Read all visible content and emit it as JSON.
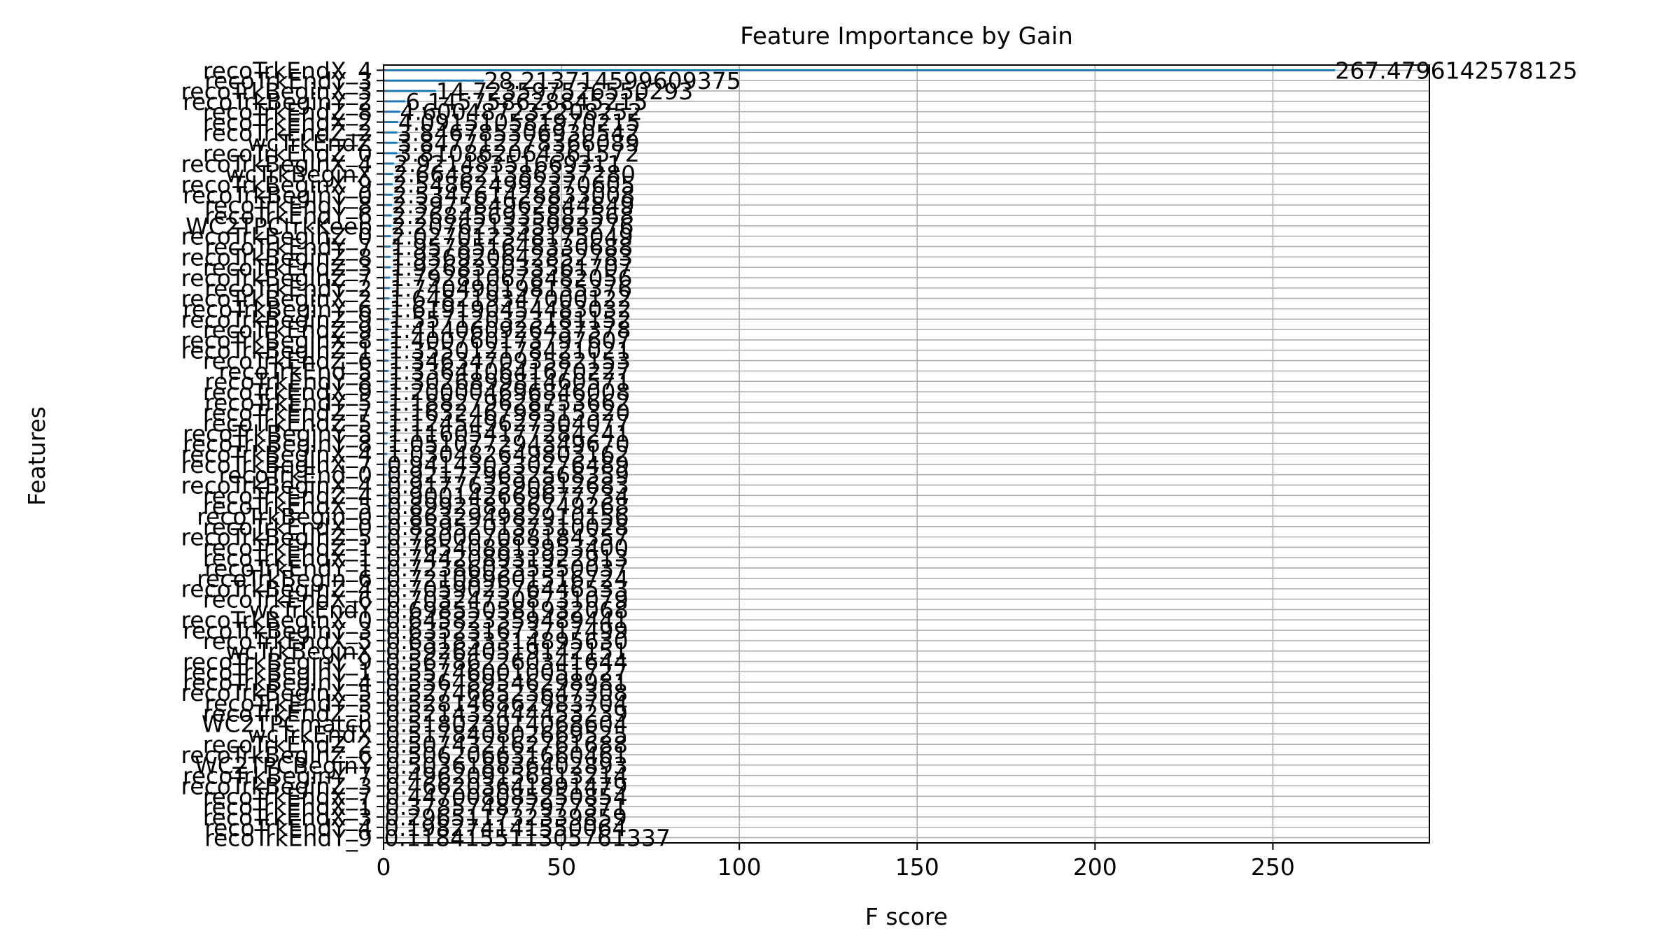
{
  "chart_data": {
    "type": "bar",
    "orientation": "horizontal",
    "title": "Feature Importance by Gain",
    "xlabel": "F score",
    "ylabel": "Features",
    "xlim": [
      0,
      294
    ],
    "xticks": [
      0,
      50,
      100,
      150,
      200,
      250
    ],
    "grid": true,
    "bar_color": "#1f77b4",
    "categories": [
      "recoTrkEndX_4",
      "recoTrkEndY_3",
      "recoTrkBeginX_3",
      "recoTrkBeginY_2",
      "recoTrkEndZ_8",
      "recoTrkEndX_2",
      "recoTrkEndZ_2",
      "wcTrkEndZ",
      "recoTrkEndZ_0",
      "recoTrkBeginX_4",
      "wcTrkBeginX",
      "recoTrkBeginX_9",
      "recoTrkBeginY_0",
      "recoTrkEndY_8",
      "recoTrkEndY_6",
      "WC2TPCtrkKeep",
      "recoTrkBeginZ_0",
      "recoTrkEndY_7",
      "recoTrkBeginZ_8",
      "recoTrkEndZ_3",
      "recoTrkBeginZ_7",
      "recoTrkEndY_2",
      "recoTrkBeginX_2",
      "recoTrkBeginY_6",
      "recoTrkBeginZ_9",
      "recoTrkEndZ_9",
      "recoTrkBeginX_8",
      "recoTrkBeginZ_1",
      "recoTrkEndZ_6",
      "recoTrkEnd_5",
      "recoTrkEndY_8",
      "recoTrkEndX_9",
      "recoTrkEndY_5",
      "recoTrkEndZ_7",
      "recoTrkEndZ_5",
      "recoTrkBeginY_5",
      "recoTrkBeginY_8",
      "recoTrkBeginX_4",
      "recoTrkBeginX_7",
      "recoTrkEnd_0",
      "recoTrkBeginX_4",
      "recoTrkEndZ_4",
      "recoTrkEndX_5",
      "recoTrkBegin_0",
      "recoTrkEndX_0",
      "recoTrkBeginZ_5",
      "recoTrkEndZ_1",
      "recoTrkEndX_1",
      "recoTrkEndY_1",
      "recoTrkBegin_6",
      "recoTrkBeginZ_4",
      "recoTrkEndX_6",
      "wcTrkEndY",
      "recoTrkBeginX_0",
      "recoTrkBeginY_3",
      "recoTrkEndX_5",
      "wcTrkBeginX",
      "recoTrkBeginY_9",
      "recoTrkBeginY_1",
      "recoTrkBeginY_4",
      "recoTrkBeginX_5",
      "recoTrkEndY_5",
      "recoTrkEndZ_5",
      "WC2TPCmatch",
      "wcTrkEndX",
      "recoTrkEndZ_2",
      "recoTrkBeginZ_6",
      "WC2TPCBeginY",
      "recoTrkBeginY_7",
      "recoTrkBeginZ_3",
      "recoTrkEndX_7",
      "recoTrkEndX_1",
      "recoTrkEndX_3",
      "recoTrkEndY_4",
      "recoTrkEndY_9"
    ],
    "values": [
      267.4796142578125,
      28.213714599609375,
      14.723597526550293,
      6.145758628845215,
      4.600487232208252,
      4.091510581970215,
      3.846785306930542,
      3.847712278366089,
      3.810862064361572,
      2.92148351669311,
      2.66482138633728,
      2.548624992370605,
      2.534761428833008,
      2.397584962844849,
      2.268456935882568,
      2.207621335983276,
      2.027012348175049,
      1.957851648330688,
      1.936920642852783,
      1.926833033561707,
      1.792810678482056,
      1.740490198135376,
      1.648219347000122,
      1.619190454483032,
      1.557120323181152,
      1.414060926437378,
      1.400760173797607,
      1.355012178421021,
      1.346347093582153,
      1.336410641670227,
      1.302689981460571,
      1.200004696846008,
      1.188279628753662,
      1.16324679851532,
      1.124549627304077,
      1.116054177284241,
      1.05107729434967,
      1.030482649803162,
      0.941430330276489,
      0.921779632568359,
      0.917763590812683,
      0.900142669677734,
      0.899258136749268,
      0.863294982910156,
      0.859520137310028,
      0.780007088184357,
      0.7654088139534,
      0.744208931922913,
      0.723860335350037,
      0.721089601516724,
      0.705902576446533,
      0.703247308731079,
      0.698550581932068,
      0.645823359489441,
      0.635231673717499,
      0.63183331489563,
      0.592640519142151,
      0.567862260341644,
      0.557460010051727,
      0.536489546298981,
      0.527466523647308,
      0.528146862983704,
      0.521432444453239,
      0.518023014068604,
      0.517840802669525,
      0.507432162761688,
      0.506206631660461,
      0.503618836402893,
      0.496209156513214,
      0.466203641891479,
      0.447008085250854,
      0.378574877977371,
      0.296511732339859,
      0.198274141550064,
      0.118415511305761
    ],
    "value_labels": [
      "267.4796142578125",
      "28.213714599609375",
      "14.723597526550293",
      "6.145758628845215",
      "4.600487232208252",
      "4.091510581970215",
      "3.846785306930542",
      "3.847712278366089",
      "3.810862064361572",
      "2.92148351669311",
      "2.664821386337280",
      "2.548624992370605",
      "2.534761428833008",
      "2.397584962844849",
      "2.268456935882568",
      "2.207621335983276",
      "2.027012348175049",
      "1.957851648330688",
      "1.936920642852783",
      "1.926833033561707",
      "1.792810678482056",
      "1.740490198135376",
      "1.648219347000122",
      "1.619190454483032",
      "1.557120323181152",
      "1.414060926437378",
      "1.400760173797607",
      "1.355012178421021",
      "1.346347093582153",
      "1.336410641670227",
      "1.302689981460571",
      "1.200004696846008",
      "1.188279628753662",
      "1.163246798515320",
      "1.124549627304077",
      "1.116054177284241",
      "1.051077294349670",
      "1.030482649803162",
      "0.941430330276489",
      "0.921779632568359",
      "0.917763590812683",
      "0.900142669677734",
      "0.899258136749268",
      "0.863294982910156",
      "0.859520137310028",
      "0.780007088184357",
      "0.765408813953400",
      "0.744208931922913",
      "0.723860335350037",
      "0.721089601516724",
      "0.705902576446533",
      "0.703247308731079",
      "0.698550581932068",
      "0.645823359489441",
      "0.635231673717499",
      "0.631833314895630",
      "0.592640519142151",
      "0.567862260341644",
      "0.557460010051727",
      "0.536489546298981",
      "0.527466523647308",
      "0.528146862983704",
      "0.521432444453239",
      "0.518023014068604",
      "0.517840802669525",
      "0.507432162761688",
      "0.506206631660461",
      "0.503618836402893",
      "0.496209156513214",
      "0.466203641891479",
      "0.447008085250854",
      "0.378574877977371",
      "0.296511732339859",
      "0.198274141550064",
      "0.118415511305761337"
    ]
  }
}
